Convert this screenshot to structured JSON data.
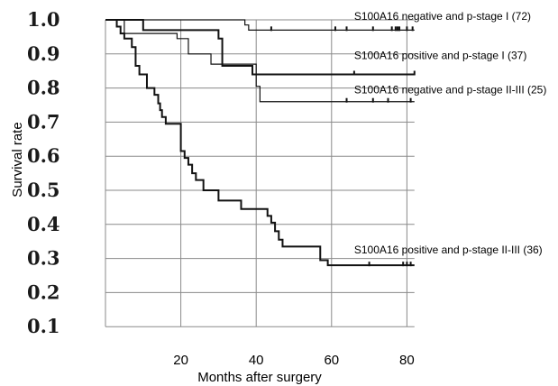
{
  "chart_data": {
    "type": "line",
    "title": "",
    "xlabel": "Months after surgery",
    "ylabel": "Survival rate",
    "xlim": [
      0,
      82
    ],
    "ylim": [
      0.05,
      1.0
    ],
    "x_ticks": [
      20,
      40,
      60,
      80
    ],
    "y_ticks": [
      "1.0",
      "0.9",
      "0.8",
      "0.7",
      "0.6",
      "0.5",
      "0.4",
      "0.3",
      "0.2",
      "0.1"
    ],
    "y_tick_values": [
      1.0,
      0.9,
      0.8,
      0.7,
      0.6,
      0.5,
      0.4,
      0.3,
      0.2,
      0.1
    ],
    "grid": true,
    "series": [
      {
        "name": "S100A16 negative and p-stage I (72)",
        "weight": "thin",
        "steps": [
          [
            0,
            1.0
          ],
          [
            37,
            0.985
          ],
          [
            38,
            0.97
          ],
          [
            82,
            0.97
          ]
        ],
        "censored": [
          [
            44,
            0.97
          ],
          [
            61,
            0.97
          ],
          [
            64,
            0.97
          ],
          [
            71,
            0.97
          ],
          [
            76,
            0.97
          ],
          [
            77,
            0.97
          ],
          [
            77.5,
            0.97
          ],
          [
            78,
            0.97
          ],
          [
            80,
            0.97
          ],
          [
            81.5,
            0.97
          ]
        ]
      },
      {
        "name": "S100A16 positive and p-stage I (37)",
        "weight": "thick",
        "steps": [
          [
            0,
            1.0
          ],
          [
            10,
            0.97
          ],
          [
            30,
            0.945
          ],
          [
            31,
            0.865
          ],
          [
            39,
            0.84
          ],
          [
            82,
            0.84
          ]
        ],
        "censored": [
          [
            66,
            0.84
          ],
          [
            82,
            0.84
          ]
        ]
      },
      {
        "name": "S100A16 negative and p-stage II-III (25)",
        "weight": "thin",
        "steps": [
          [
            0,
            1.0
          ],
          [
            5,
            0.96
          ],
          [
            19,
            0.945
          ],
          [
            22,
            0.9
          ],
          [
            28,
            0.87
          ],
          [
            40,
            0.805
          ],
          [
            41,
            0.76
          ],
          [
            82,
            0.76
          ]
        ],
        "censored": [
          [
            64,
            0.76
          ],
          [
            71,
            0.76
          ],
          [
            75,
            0.76
          ],
          [
            81,
            0.76
          ]
        ]
      },
      {
        "name": "S100A16 positive and p-stage II-III (36)",
        "weight": "thick",
        "steps": [
          [
            0,
            1.0
          ],
          [
            3,
            0.98
          ],
          [
            4,
            0.96
          ],
          [
            5,
            0.945
          ],
          [
            7,
            0.92
          ],
          [
            8,
            0.865
          ],
          [
            9,
            0.84
          ],
          [
            11,
            0.8
          ],
          [
            13,
            0.78
          ],
          [
            14,
            0.755
          ],
          [
            14.5,
            0.735
          ],
          [
            15,
            0.715
          ],
          [
            16,
            0.695
          ],
          [
            20,
            0.615
          ],
          [
            21,
            0.595
          ],
          [
            22,
            0.575
          ],
          [
            23,
            0.55
          ],
          [
            24,
            0.53
          ],
          [
            26,
            0.5
          ],
          [
            30,
            0.47
          ],
          [
            35,
            0.47
          ],
          [
            36,
            0.445
          ],
          [
            43,
            0.425
          ],
          [
            44,
            0.405
          ],
          [
            45,
            0.38
          ],
          [
            46,
            0.355
          ],
          [
            47,
            0.335
          ],
          [
            55,
            0.335
          ],
          [
            57,
            0.295
          ],
          [
            59,
            0.28
          ],
          [
            82,
            0.28
          ]
        ],
        "censored": [
          [
            70,
            0.28
          ],
          [
            79,
            0.28
          ],
          [
            80,
            0.28
          ],
          [
            81,
            0.28
          ]
        ]
      }
    ],
    "annotations": [
      {
        "text": "S100A16 negative and p-stage I (72)",
        "x": 66,
        "y": 1.0
      },
      {
        "text": "S100A16 positive and p-stage I (37)",
        "x": 66,
        "y": 0.885
      },
      {
        "text": "S100A16 negative and p-stage II-III (25)",
        "x": 66,
        "y": 0.785
      },
      {
        "text": "S100A16 positive and p-stage II-III (36)",
        "x": 66,
        "y": 0.315
      }
    ]
  }
}
